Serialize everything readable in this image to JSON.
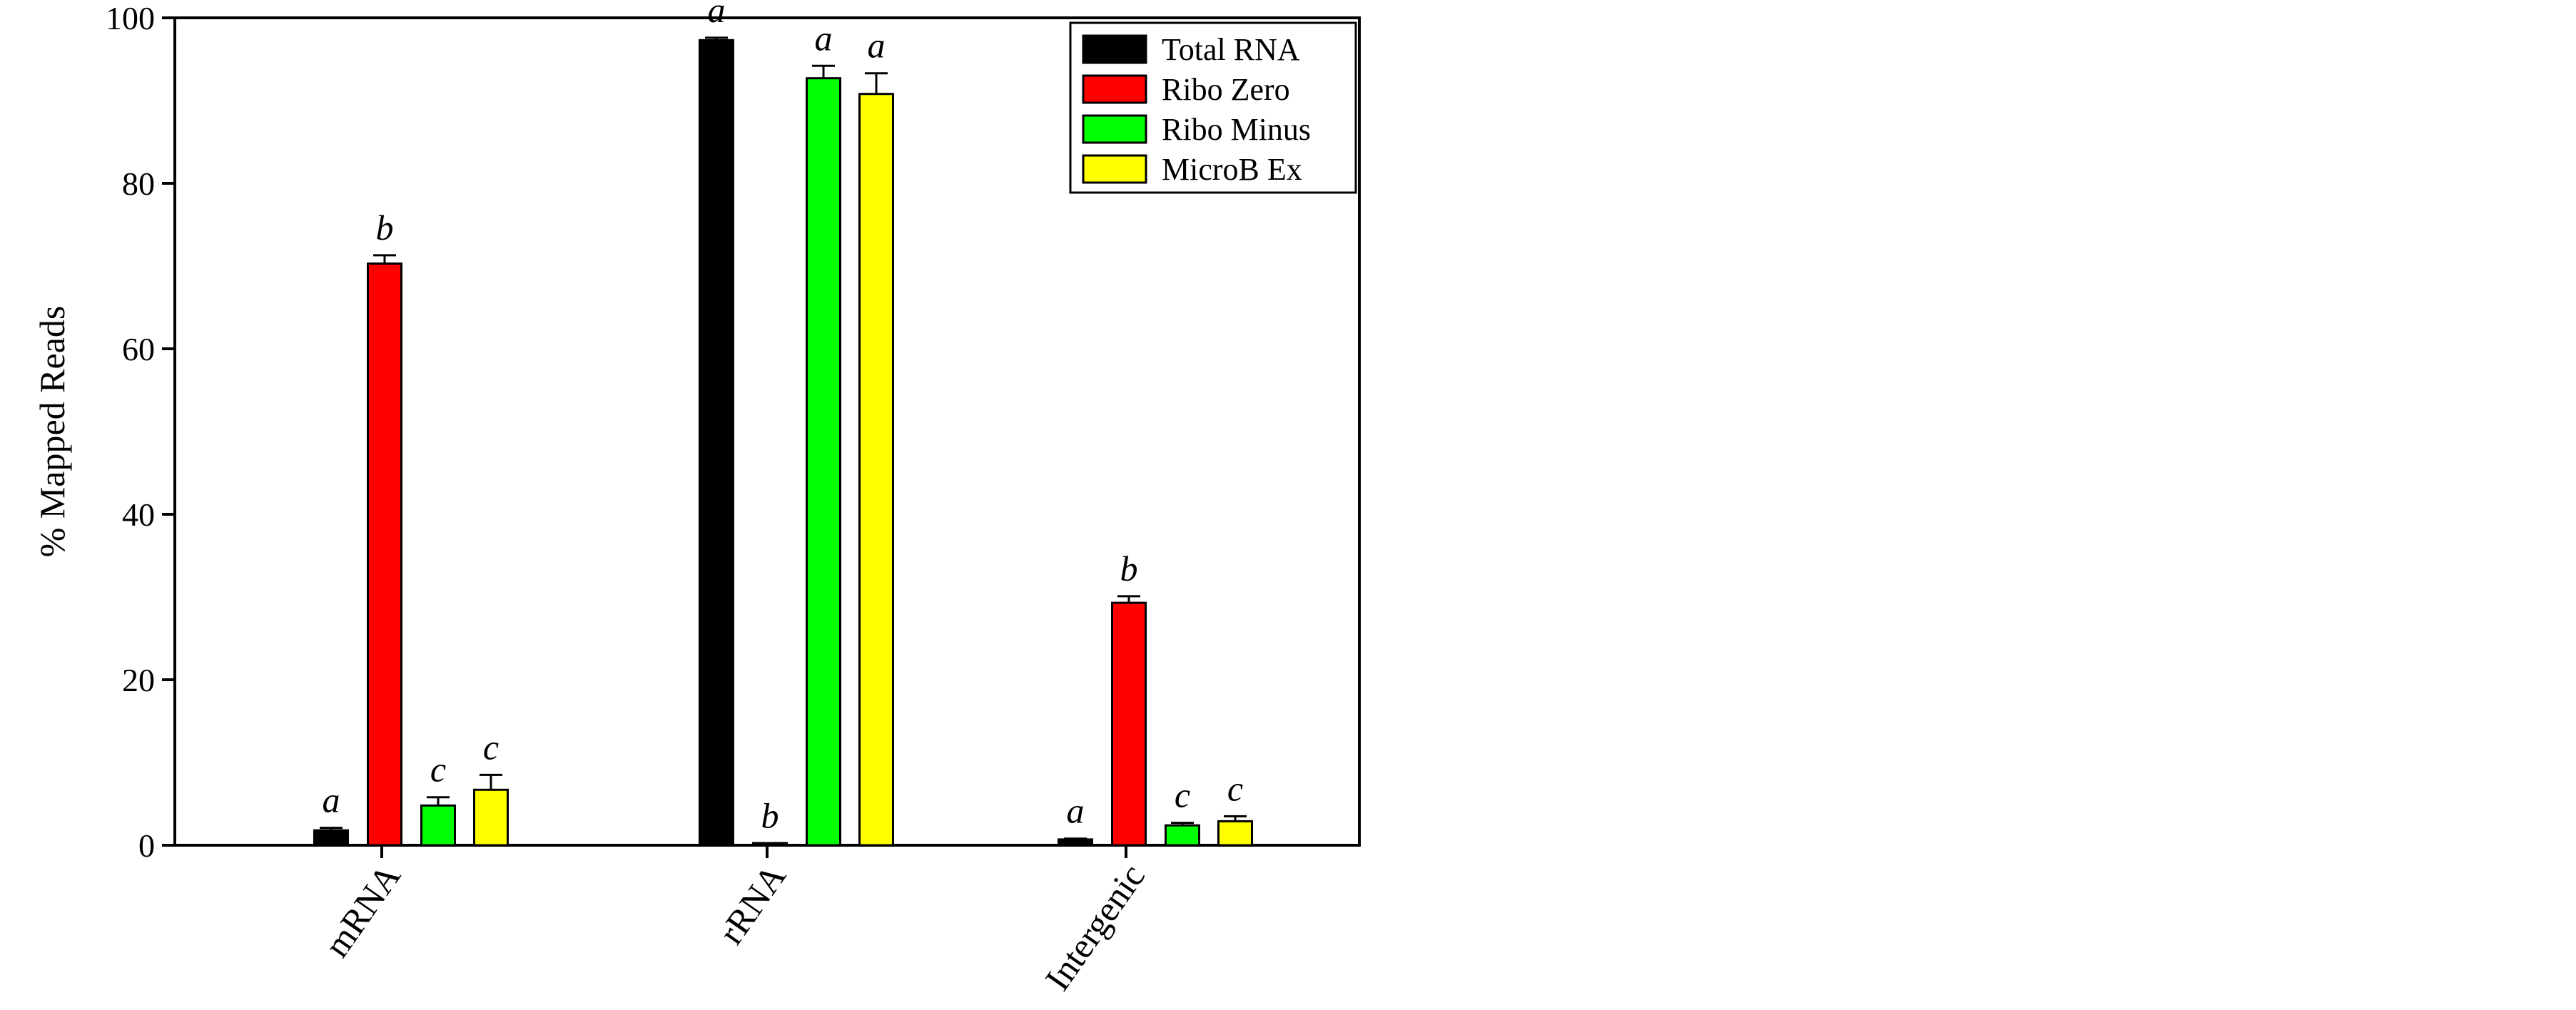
{
  "chart_data": {
    "type": "bar",
    "title": "",
    "xlabel": "",
    "ylabel": "% Mapped Reads",
    "ylim": [
      0,
      100
    ],
    "yticks": [
      0,
      20,
      40,
      60,
      80,
      100
    ],
    "grid": false,
    "legend_position": "top-right",
    "categories": [
      "mRNA",
      "rRNA",
      "Intergenic"
    ],
    "series": [
      {
        "name": "Total RNA",
        "color": "#000000",
        "values": [
          1.8,
          97.3,
          0.7
        ],
        "errors": [
          0.3,
          0.3,
          0.1
        ],
        "significance": [
          "a",
          "a",
          "a"
        ]
      },
      {
        "name": "Ribo Zero",
        "color": "#ff0000",
        "values": [
          70.3,
          0.1,
          29.3
        ],
        "errors": [
          1.0,
          0.1,
          0.8
        ],
        "significance": [
          "b",
          "b",
          "b"
        ]
      },
      {
        "name": "Ribo Minus",
        "color": "#00ff00",
        "values": [
          4.8,
          92.7,
          2.4
        ],
        "errors": [
          1.0,
          1.5,
          0.3
        ],
        "significance": [
          "c",
          "a",
          "c"
        ]
      },
      {
        "name": "MicroB Ex",
        "color": "#ffff00",
        "values": [
          6.7,
          90.8,
          2.9
        ],
        "errors": [
          1.8,
          2.5,
          0.6
        ],
        "significance": [
          "c",
          "a",
          "c"
        ]
      }
    ]
  }
}
